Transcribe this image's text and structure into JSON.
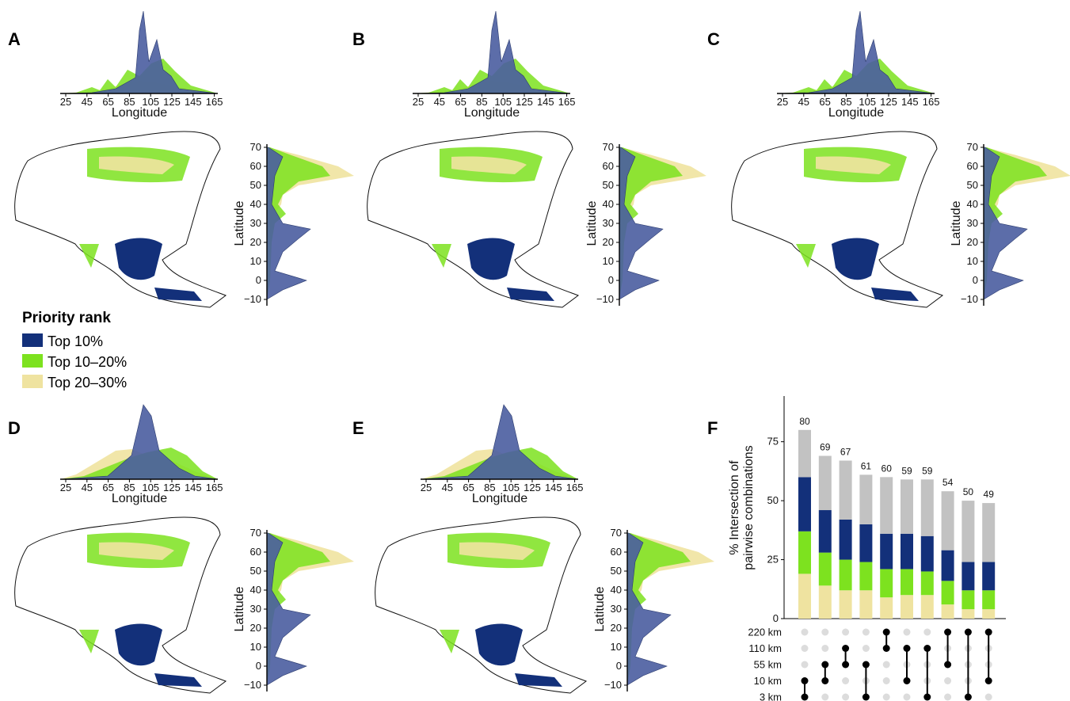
{
  "colors": {
    "top10": "#13307a",
    "top10_20": "#7de21f",
    "top20_30": "#efe3a0",
    "density_top10": "#4a5da0",
    "overlap": "#2f5f55",
    "gray": "#c2c2c2",
    "dot_on": "#000000",
    "dot_off": "#dcdcdc",
    "land": "#ffffff",
    "coast": "#111111"
  },
  "legend": {
    "title": "Priority rank",
    "items": [
      {
        "label": "Top 10%",
        "color": "#13307a"
      },
      {
        "label": "Top 10–20%",
        "color": "#7de21f"
      },
      {
        "label": "Top 20–30%",
        "color": "#efe3a0"
      }
    ]
  },
  "axes": {
    "longitude_label": "Longitude",
    "latitude_label": "Latitude",
    "longitude_ticks": [
      "25",
      "45",
      "65",
      "85",
      "105",
      "125",
      "145",
      "165"
    ],
    "latitude_ticks": [
      "70",
      "60",
      "50",
      "40",
      "30",
      "20",
      "10",
      "0",
      "−10"
    ]
  },
  "panels": [
    {
      "letter": "A",
      "map_icon": "asia-map",
      "description": "priority density panel"
    },
    {
      "letter": "B",
      "map_icon": "asia-map",
      "description": "priority density panel"
    },
    {
      "letter": "C",
      "map_icon": "asia-map",
      "description": "priority density panel"
    },
    {
      "letter": "D",
      "map_icon": "asia-map",
      "description": "priority density panel"
    },
    {
      "letter": "E",
      "map_icon": "asia-map",
      "description": "priority density panel"
    }
  ],
  "chart_data": {
    "type": "bar",
    "panel_letter": "F",
    "ylabel_line1": "% Intersection of",
    "ylabel_line2": "pairwise combinations",
    "ylim": [
      0,
      90
    ],
    "yticks": [
      "0",
      "25",
      "50",
      "75"
    ],
    "sets": [
      "220 km",
      "110 km",
      "55 km",
      "10 km",
      "3 km"
    ],
    "bars": [
      {
        "total": 80,
        "top20_30": 19,
        "top10_20": 18,
        "top10": 23,
        "members": [
          "10 km",
          "3 km"
        ]
      },
      {
        "total": 69,
        "top20_30": 14,
        "top10_20": 14,
        "top10": 18,
        "members": [
          "55 km",
          "10 km"
        ]
      },
      {
        "total": 67,
        "top20_30": 12,
        "top10_20": 13,
        "top10": 17,
        "members": [
          "110 km",
          "55 km"
        ]
      },
      {
        "total": 61,
        "top20_30": 12,
        "top10_20": 12,
        "top10": 16,
        "members": [
          "55 km",
          "3 km"
        ]
      },
      {
        "total": 60,
        "top20_30": 9,
        "top10_20": 12,
        "top10": 15,
        "members": [
          "220 km",
          "110 km"
        ]
      },
      {
        "total": 59,
        "top20_30": 10,
        "top10_20": 11,
        "top10": 15,
        "members": [
          "110 km",
          "10 km"
        ]
      },
      {
        "total": 59,
        "top20_30": 10,
        "top10_20": 10,
        "top10": 15,
        "members": [
          "110 km",
          "3 km"
        ]
      },
      {
        "total": 54,
        "top20_30": 6,
        "top10_20": 10,
        "top10": 13,
        "members": [
          "220 km",
          "55 km"
        ]
      },
      {
        "total": 50,
        "top20_30": 4,
        "top10_20": 8,
        "top10": 12,
        "members": [
          "220 km",
          "3 km"
        ]
      },
      {
        "total": 49,
        "top20_30": 4,
        "top10_20": 8,
        "top10": 12,
        "members": [
          "220 km",
          "10 km"
        ]
      }
    ]
  }
}
